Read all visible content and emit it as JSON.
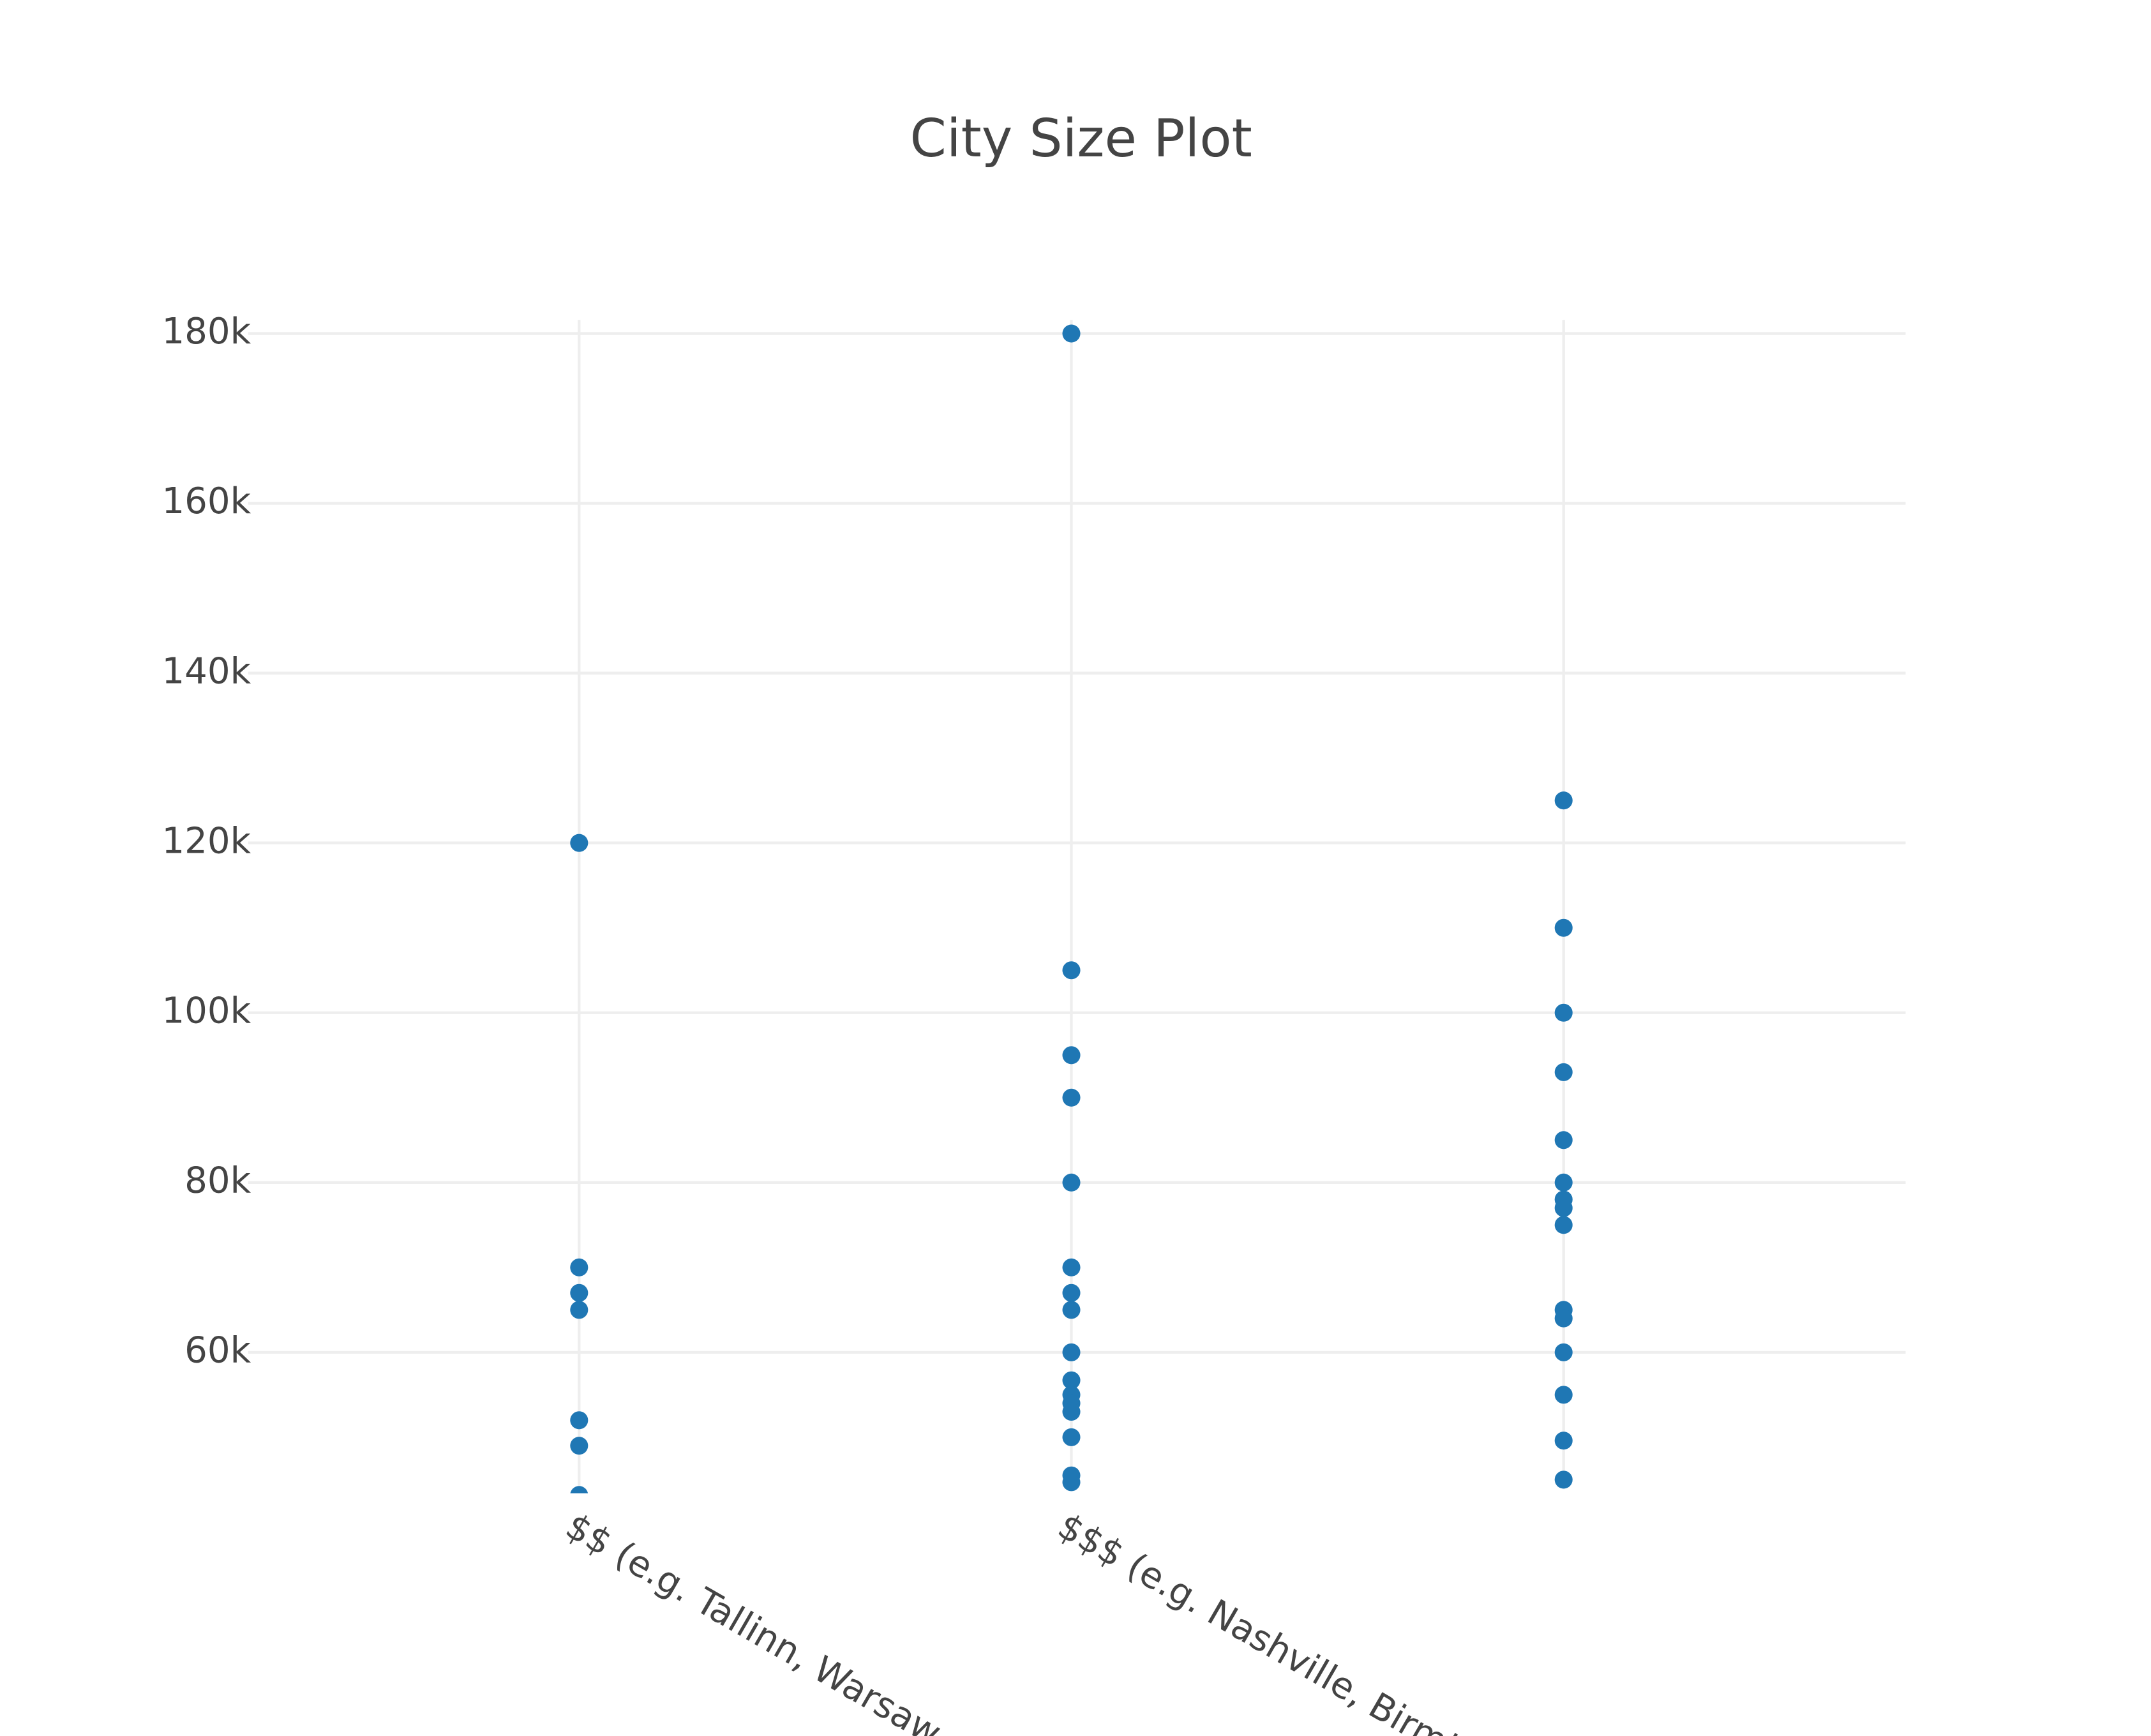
{
  "chart_data": {
    "type": "strip",
    "title": "City Size Plot",
    "categories": [
      "$$ (e.g. Tallinn, Warsaw, B",
      "$$$ (e.g. Nashville, Birmin",
      null
    ],
    "values": [
      [
        120000,
        70000,
        67000,
        65000,
        52000,
        49000,
        43200
      ],
      [
        180000,
        105000,
        95000,
        90000,
        80000,
        70000,
        67000,
        65000,
        60000,
        56700,
        55000,
        54000,
        53000,
        50000,
        45500,
        44700
      ],
      [
        125000,
        110000,
        100000,
        93000,
        85000,
        80000,
        78000,
        77000,
        75000,
        65000,
        64000,
        60000,
        55000,
        49600,
        45000
      ]
    ],
    "color": "#1f77b4",
    "ylim": [
      43400,
      181600
    ],
    "yticks": [
      {
        "value": 60000,
        "label": "60k"
      },
      {
        "value": 80000,
        "label": "80k"
      },
      {
        "value": 100000,
        "label": "100k"
      },
      {
        "value": 120000,
        "label": "120k"
      },
      {
        "value": 140000,
        "label": "140k"
      },
      {
        "value": 160000,
        "label": "160k"
      },
      {
        "value": 180000,
        "label": "180k"
      }
    ],
    "grid": true
  }
}
